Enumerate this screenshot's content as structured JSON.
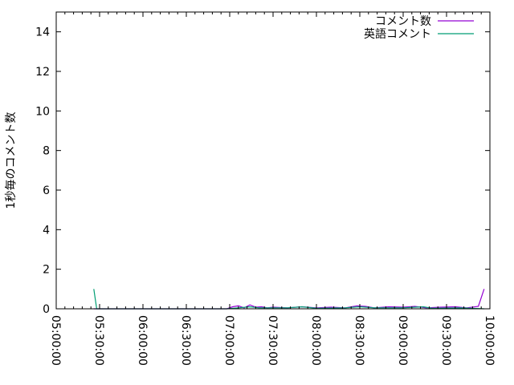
{
  "chart_data": {
    "type": "line",
    "title": "",
    "xlabel": "",
    "ylabel": "1秒毎のコメント数",
    "xlim": [
      "05:00:00",
      "10:00:00"
    ],
    "ylim": [
      0,
      15
    ],
    "x_ticks": [
      "05:00:00",
      "05:30:00",
      "06:00:00",
      "06:30:00",
      "07:00:00",
      "07:30:00",
      "08:00:00",
      "08:30:00",
      "09:00:00",
      "09:30:00",
      "10:00:00"
    ],
    "y_ticks": [
      "0",
      "2",
      "4",
      "6",
      "8",
      "10",
      "12",
      "14"
    ],
    "grid": false,
    "legend_position": "top-right",
    "series": [
      {
        "name": "コメント数",
        "color": "#9400d3",
        "points": [
          [
            "05:26:00",
            0
          ],
          [
            "06:58:00",
            0
          ],
          [
            "07:02:00",
            0.1
          ],
          [
            "07:06:00",
            0.15
          ],
          [
            "07:10:00",
            0.05
          ],
          [
            "07:14:00",
            0.2
          ],
          [
            "07:18:00",
            0.08
          ],
          [
            "07:22:00",
            0.1
          ],
          [
            "07:26:00",
            0.05
          ],
          [
            "07:30:00",
            0.08
          ],
          [
            "07:40:00",
            0.05
          ],
          [
            "07:50:00",
            0.1
          ],
          [
            "08:00:00",
            0.05
          ],
          [
            "08:10:00",
            0.08
          ],
          [
            "08:20:00",
            0.05
          ],
          [
            "08:28:00",
            0.15
          ],
          [
            "08:34:00",
            0.12
          ],
          [
            "08:40:00",
            0.05
          ],
          [
            "08:50:00",
            0.1
          ],
          [
            "09:00:00",
            0.08
          ],
          [
            "09:08:00",
            0.12
          ],
          [
            "09:16:00",
            0.05
          ],
          [
            "09:26:00",
            0.08
          ],
          [
            "09:36:00",
            0.1
          ],
          [
            "09:44:00",
            0.05
          ],
          [
            "09:52:00",
            0.12
          ],
          [
            "09:56:00",
            1
          ]
        ]
      },
      {
        "name": "英語コメント",
        "color": "#009e73",
        "points": [
          [
            "05:26:00",
            1
          ],
          [
            "05:28:00",
            0
          ],
          [
            "06:58:00",
            0
          ],
          [
            "07:06:00",
            0.05
          ],
          [
            "07:14:00",
            0.1
          ],
          [
            "07:20:00",
            0.05
          ],
          [
            "07:40:00",
            0.05
          ],
          [
            "07:50:00",
            0.1
          ],
          [
            "08:00:00",
            0.03
          ],
          [
            "08:20:00",
            0.05
          ],
          [
            "08:30:00",
            0.1
          ],
          [
            "08:40:00",
            0.05
          ],
          [
            "09:00:00",
            0.05
          ],
          [
            "09:14:00",
            0.1
          ],
          [
            "09:20:00",
            0.03
          ],
          [
            "09:40:00",
            0.05
          ],
          [
            "09:56:00",
            0
          ]
        ]
      }
    ]
  }
}
